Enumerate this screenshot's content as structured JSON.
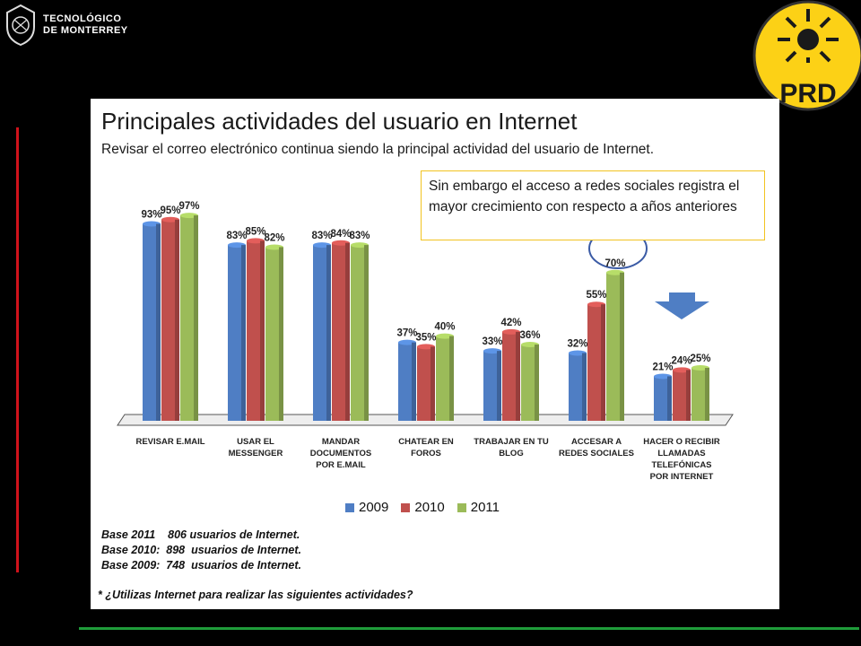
{
  "header": {
    "logo_line1": "TECNOLÓGICO",
    "logo_line2": "DE MONTERREY",
    "prd_text": "PRD"
  },
  "slide": {
    "title": "Principales actividades del usuario en Internet",
    "subtitle": "Revisar el correo electrónico continua siendo la principal actividad del usuario de Internet.",
    "callout": "Sin embargo el acceso a redes sociales registra el mayor crecimiento con respecto a años anteriores",
    "base_lines": [
      "Base 2011    806 usuarios de Internet.",
      "Base 2010:  898  usuarios de Internet.",
      "Base 2009:  748  usuarios de Internet."
    ],
    "question": "* ¿Utilizas Internet para realizar las siguientes actividades?"
  },
  "colors": {
    "2009": "#4f7ec4",
    "2010": "#c0504d",
    "2011": "#9bbb59"
  },
  "chart_data": {
    "type": "bar",
    "categories": [
      [
        "REVISAR E.MAIL"
      ],
      [
        "USAR EL",
        "MESSENGER"
      ],
      [
        "MANDAR",
        "DOCUMENTOS",
        "POR E.MAIL"
      ],
      [
        "CHATEAR EN",
        "FOROS"
      ],
      [
        "TRABAJAR EN TU",
        "BLOG"
      ],
      [
        "ACCESAR A",
        "REDES SOCIALES"
      ],
      [
        "HACER O RECIBIR",
        "LLAMADAS",
        "TELEFÓNICAS",
        "POR INTERNET"
      ]
    ],
    "series": [
      {
        "name": "2009",
        "values": [
          93,
          83,
          83,
          37,
          33,
          32,
          21
        ]
      },
      {
        "name": "2010",
        "values": [
          95,
          85,
          84,
          35,
          42,
          55,
          24
        ]
      },
      {
        "name": "2011",
        "values": [
          97,
          82,
          83,
          40,
          36,
          70,
          25
        ]
      }
    ],
    "value_suffix": "%",
    "ylim": [
      0,
      100
    ],
    "grid": false,
    "legend_position": "bottom"
  }
}
